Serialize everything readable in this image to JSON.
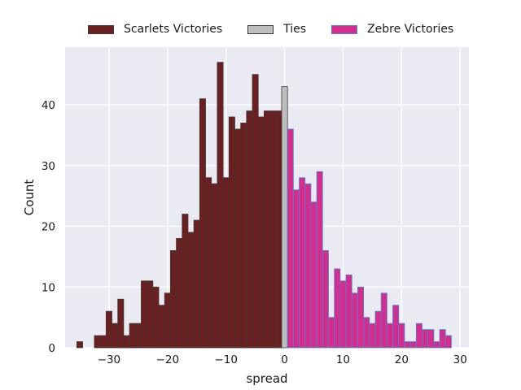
{
  "chart_data": {
    "type": "bar",
    "subtype": "histogram",
    "xlabel": "spread",
    "ylabel": "Count",
    "xlim": [
      -37.5,
      31.5
    ],
    "ylim": [
      0,
      49.5
    ],
    "xticks": [
      -30,
      -20,
      -10,
      0,
      10,
      20,
      30
    ],
    "yticks": [
      0,
      10,
      20,
      30,
      40
    ],
    "grid": true,
    "legend_position": "top-center",
    "colors": {
      "background": "#EAEAF2",
      "grid": "#FFFFFF"
    },
    "series": [
      {
        "name": "Scarlets Victories",
        "fill": "#6B1F1F",
        "edge": "#3A3A3A",
        "x": [
          -35,
          -34,
          -33,
          -32,
          -31,
          -30,
          -29,
          -28,
          -27,
          -26,
          -25,
          -24,
          -23,
          -22,
          -21,
          -20,
          -19,
          -18,
          -17,
          -16,
          -15,
          -14,
          -13,
          -12,
          -11,
          -10,
          -9,
          -8,
          -7,
          -6,
          -5,
          -4,
          -3,
          -2,
          -1
        ],
        "values": [
          1,
          0,
          0,
          2,
          2,
          6,
          4,
          8,
          2,
          4,
          4,
          11,
          11,
          10,
          7,
          9,
          16,
          18,
          22,
          19,
          21,
          41,
          28,
          27,
          47,
          28,
          38,
          36,
          37,
          39,
          45,
          38,
          39,
          39,
          39
        ]
      },
      {
        "name": "Ties",
        "fill": "#BEBEBE",
        "edge": "#3A3A3A",
        "x": [
          0
        ],
        "values": [
          43
        ]
      },
      {
        "name": "Zebre Victories",
        "fill": "#D72C8E",
        "edge": "#3B8BD6",
        "x": [
          1,
          2,
          3,
          4,
          5,
          6,
          7,
          8,
          9,
          10,
          11,
          12,
          13,
          14,
          15,
          16,
          17,
          18,
          19,
          20,
          21,
          22,
          23,
          24,
          25,
          26,
          27,
          28
        ],
        "values": [
          36,
          26,
          28,
          27,
          24,
          29,
          16,
          5,
          13,
          11,
          12,
          9,
          10,
          5,
          4,
          6,
          9,
          4,
          7,
          4,
          1,
          1,
          4,
          3,
          3,
          1,
          3,
          2
        ]
      }
    ]
  }
}
